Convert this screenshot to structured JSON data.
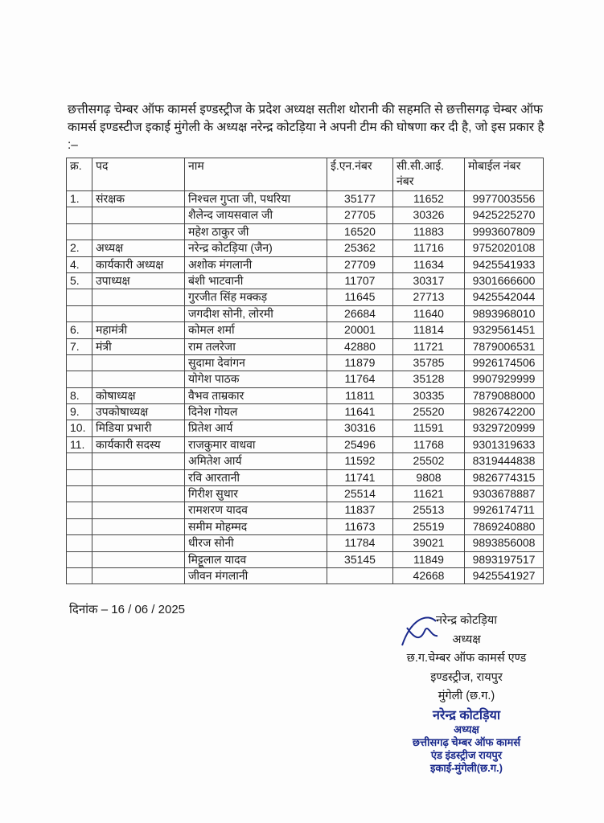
{
  "intro": "छत्तीसगढ़ चेम्बर ऑफ कामर्स इण्डस्ट्रीज के प्रदेश अध्यक्ष सतीश थोरानी की सहमति से छत्तीसगढ़ चेम्बर ऑफ कामर्स इण्डस्टीज इकाई मुंगेली के अध्यक्ष नरेन्द्र कोटड़िया ने अपनी टीम की घोषणा कर दी है, जो इस प्रकार है :–",
  "table": {
    "headers": [
      "क्र.",
      "पद",
      "नाम",
      "ई.एन.नंबर",
      "सी.सी.आई. नंबर",
      "मोबाईल नंबर"
    ],
    "rows": [
      [
        "1.",
        "संरक्षक",
        "निश्चल गुप्ता जी, पथरिया",
        "35177",
        "11652",
        "9977003556"
      ],
      [
        "",
        "",
        "शैलेन्द जायसवाल जी",
        "27705",
        "30326",
        "9425225270"
      ],
      [
        "",
        "",
        "महेश ठाकुर जी",
        "16520",
        "11883",
        "9993607809"
      ],
      [
        "2.",
        "अध्यक्ष",
        "नरेन्द्र कोटड़िया (जैन)",
        "25362",
        "11716",
        "9752020108"
      ],
      [
        "4.",
        "कार्यकारी अध्यक्ष",
        "अशोक मंगलानी",
        "27709",
        "11634",
        "9425541933"
      ],
      [
        "5.",
        "उपाध्यक्ष",
        "बंशी भाटवानी",
        "11707",
        "30317",
        "9301666600"
      ],
      [
        "",
        "",
        "गुरजीत सिंह मक्कड़",
        "11645",
        "27713",
        "9425542044"
      ],
      [
        "",
        "",
        "जगदीश सोनी, लोरमी",
        "26684",
        "11640",
        "9893968010"
      ],
      [
        "6.",
        "महामंत्री",
        "कोमल शर्मा",
        "20001",
        "11814",
        "9329561451"
      ],
      [
        "7.",
        "मंत्री",
        "राम तलरेजा",
        "42880",
        "11721",
        "7879006531"
      ],
      [
        "",
        "",
        "सुदामा देवांगन",
        "11879",
        "35785",
        "9926174506"
      ],
      [
        "",
        "",
        "योगेश पाठक",
        "11764",
        "35128",
        "9907929999"
      ],
      [
        "8.",
        "कोषाध्यक्ष",
        "वैभव ताम्रकार",
        "11811",
        "30335",
        "7879088000"
      ],
      [
        "9.",
        "उपकोषाध्यक्ष",
        "दिनेश गोयल",
        "11641",
        "25520",
        "9826742200"
      ],
      [
        "10.",
        "मिडिया प्रभारी",
        "प्रितेश आर्य",
        "30316",
        "11591",
        "9329720999"
      ],
      [
        "11.",
        "कार्यकारी सदस्य",
        "राजकुमार वाधवा",
        "25496",
        "11768",
        "9301319633"
      ],
      [
        "",
        "",
        "अमितेश आर्य",
        "11592",
        "25502",
        "8319444838"
      ],
      [
        "",
        "",
        "रवि आरतानी",
        "11741",
        "9808",
        "9826774315"
      ],
      [
        "",
        "",
        "गिरीश सुथार",
        "25514",
        "11621",
        "9303678887"
      ],
      [
        "",
        "",
        "रामशरण यादव",
        "11837",
        "25513",
        "9926174711"
      ],
      [
        "",
        "",
        "समीम मोहम्मद",
        "11673",
        "25519",
        "7869240880"
      ],
      [
        "",
        "",
        "धीरज सोनी",
        "11784",
        "39021",
        "9893856008"
      ],
      [
        "",
        "",
        "मिट्टूलाल यादव",
        "35145",
        "11849",
        "9893197517"
      ],
      [
        "",
        "",
        "जीवन मंगलानी",
        "",
        "42668",
        "9425541927"
      ]
    ]
  },
  "date": "दिनांक – 16 / 06 / 2025",
  "signature": {
    "lines": [
      "नरेन्द्र कोटड़िया",
      "अध्यक्ष",
      "छ.ग.चेम्बर ऑफ कामर्स एण्ड",
      "इण्डस्ट्रीज, रायपुर",
      "मुंगेली (छ.ग.)"
    ]
  },
  "stamp": {
    "lines": [
      "नरेन्द्र कोटड़िया",
      "अध्यक्ष",
      "छत्तीसगढ़ चेम्बर ऑफ कामर्स",
      "एंड इंडस्ट्रीज रायपुर",
      "इकाई-मुंगेली(छ.ग.)"
    ],
    "color": "#1b2a8c"
  }
}
